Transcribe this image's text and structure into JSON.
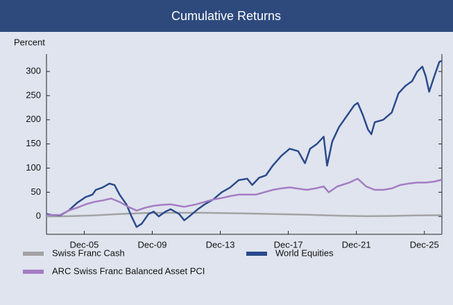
{
  "chart_data": {
    "type": "line",
    "title": "Cumulative Returns",
    "ylabel": "Percent",
    "xlim": [
      2003.7,
      2026.95
    ],
    "ylim": [
      -37,
      336
    ],
    "yticks": [
      0,
      50,
      100,
      150,
      200,
      250,
      300
    ],
    "xticks": [
      {
        "value": 2005.92,
        "label": "Dec-05"
      },
      {
        "value": 2009.92,
        "label": "Dec-09"
      },
      {
        "value": 2013.92,
        "label": "Dec-13"
      },
      {
        "value": 2017.92,
        "label": "Dec-17"
      },
      {
        "value": 2021.92,
        "label": "Dec-21"
      },
      {
        "value": 2025.92,
        "label": "Dec-25"
      }
    ],
    "legend": "bottom",
    "series": [
      {
        "name": "Swiss Franc Cash",
        "color": "#a3a3a3",
        "x": [
          2003.7,
          2005.0,
          2006.5,
          2008.0,
          2009.5,
          2011.0,
          2013.0,
          2015.0,
          2017.0,
          2019.0,
          2021.0,
          2022.5,
          2024.0,
          2025.5,
          2026.95
        ],
        "values": [
          0,
          0.5,
          2,
          5,
          7,
          7.5,
          7.5,
          6.5,
          5,
          3.5,
          1.5,
          0.5,
          1,
          2,
          2.5
        ]
      },
      {
        "name": "World Equities",
        "color": "#2b4a8b",
        "x": [
          2003.7,
          2004.0,
          2004.5,
          2005.0,
          2005.5,
          2006.0,
          2006.4,
          2006.6,
          2007.0,
          2007.4,
          2007.7,
          2008.0,
          2008.4,
          2008.7,
          2009.0,
          2009.3,
          2009.7,
          2010.0,
          2010.3,
          2010.7,
          2011.0,
          2011.5,
          2011.8,
          2012.2,
          2012.6,
          2013.0,
          2013.5,
          2014.0,
          2014.5,
          2015.0,
          2015.5,
          2015.8,
          2016.2,
          2016.6,
          2017.0,
          2017.5,
          2018.0,
          2018.5,
          2018.9,
          2019.2,
          2019.6,
          2020.0,
          2020.2,
          2020.5,
          2020.9,
          2021.3,
          2021.8,
          2022.0,
          2022.3,
          2022.6,
          2022.8,
          2023.0,
          2023.5,
          2024.0,
          2024.4,
          2024.8,
          2025.2,
          2025.5,
          2025.8,
          2026.0,
          2026.2,
          2026.5,
          2026.8,
          2026.95
        ],
        "values": [
          5,
          3,
          2,
          12,
          28,
          40,
          45,
          55,
          60,
          68,
          65,
          45,
          25,
          0,
          -22,
          -15,
          5,
          10,
          0,
          10,
          15,
          5,
          -8,
          3,
          15,
          25,
          35,
          50,
          60,
          75,
          78,
          65,
          80,
          85,
          105,
          125,
          140,
          135,
          110,
          140,
          150,
          165,
          105,
          155,
          185,
          205,
          230,
          235,
          210,
          180,
          170,
          195,
          200,
          215,
          255,
          270,
          280,
          300,
          310,
          290,
          258,
          290,
          320,
          322
        ]
      },
      {
        "name": "ARC Swiss Franc Balanced Asset PCI",
        "color": "#a47cc3",
        "x": [
          2003.7,
          2004.5,
          2005.0,
          2005.5,
          2006.0,
          2006.5,
          2007.0,
          2007.5,
          2008.0,
          2008.5,
          2009.0,
          2009.5,
          2010.0,
          2010.5,
          2011.0,
          2011.8,
          2012.5,
          2013.0,
          2013.5,
          2014.0,
          2014.5,
          2015.0,
          2016.0,
          2016.5,
          2017.0,
          2017.5,
          2018.0,
          2019.0,
          2019.5,
          2020.0,
          2020.3,
          2020.8,
          2021.5,
          2022.0,
          2022.5,
          2023.0,
          2023.5,
          2024.0,
          2024.5,
          2025.0,
          2025.5,
          2026.0,
          2026.5,
          2026.95
        ],
        "values": [
          3,
          3,
          12,
          18,
          25,
          30,
          33,
          37,
          30,
          20,
          12,
          18,
          22,
          24,
          25,
          20,
          25,
          30,
          35,
          38,
          42,
          45,
          45,
          50,
          55,
          58,
          60,
          55,
          58,
          62,
          50,
          62,
          70,
          78,
          62,
          55,
          55,
          58,
          65,
          68,
          70,
          70,
          72,
          76
        ]
      }
    ]
  }
}
